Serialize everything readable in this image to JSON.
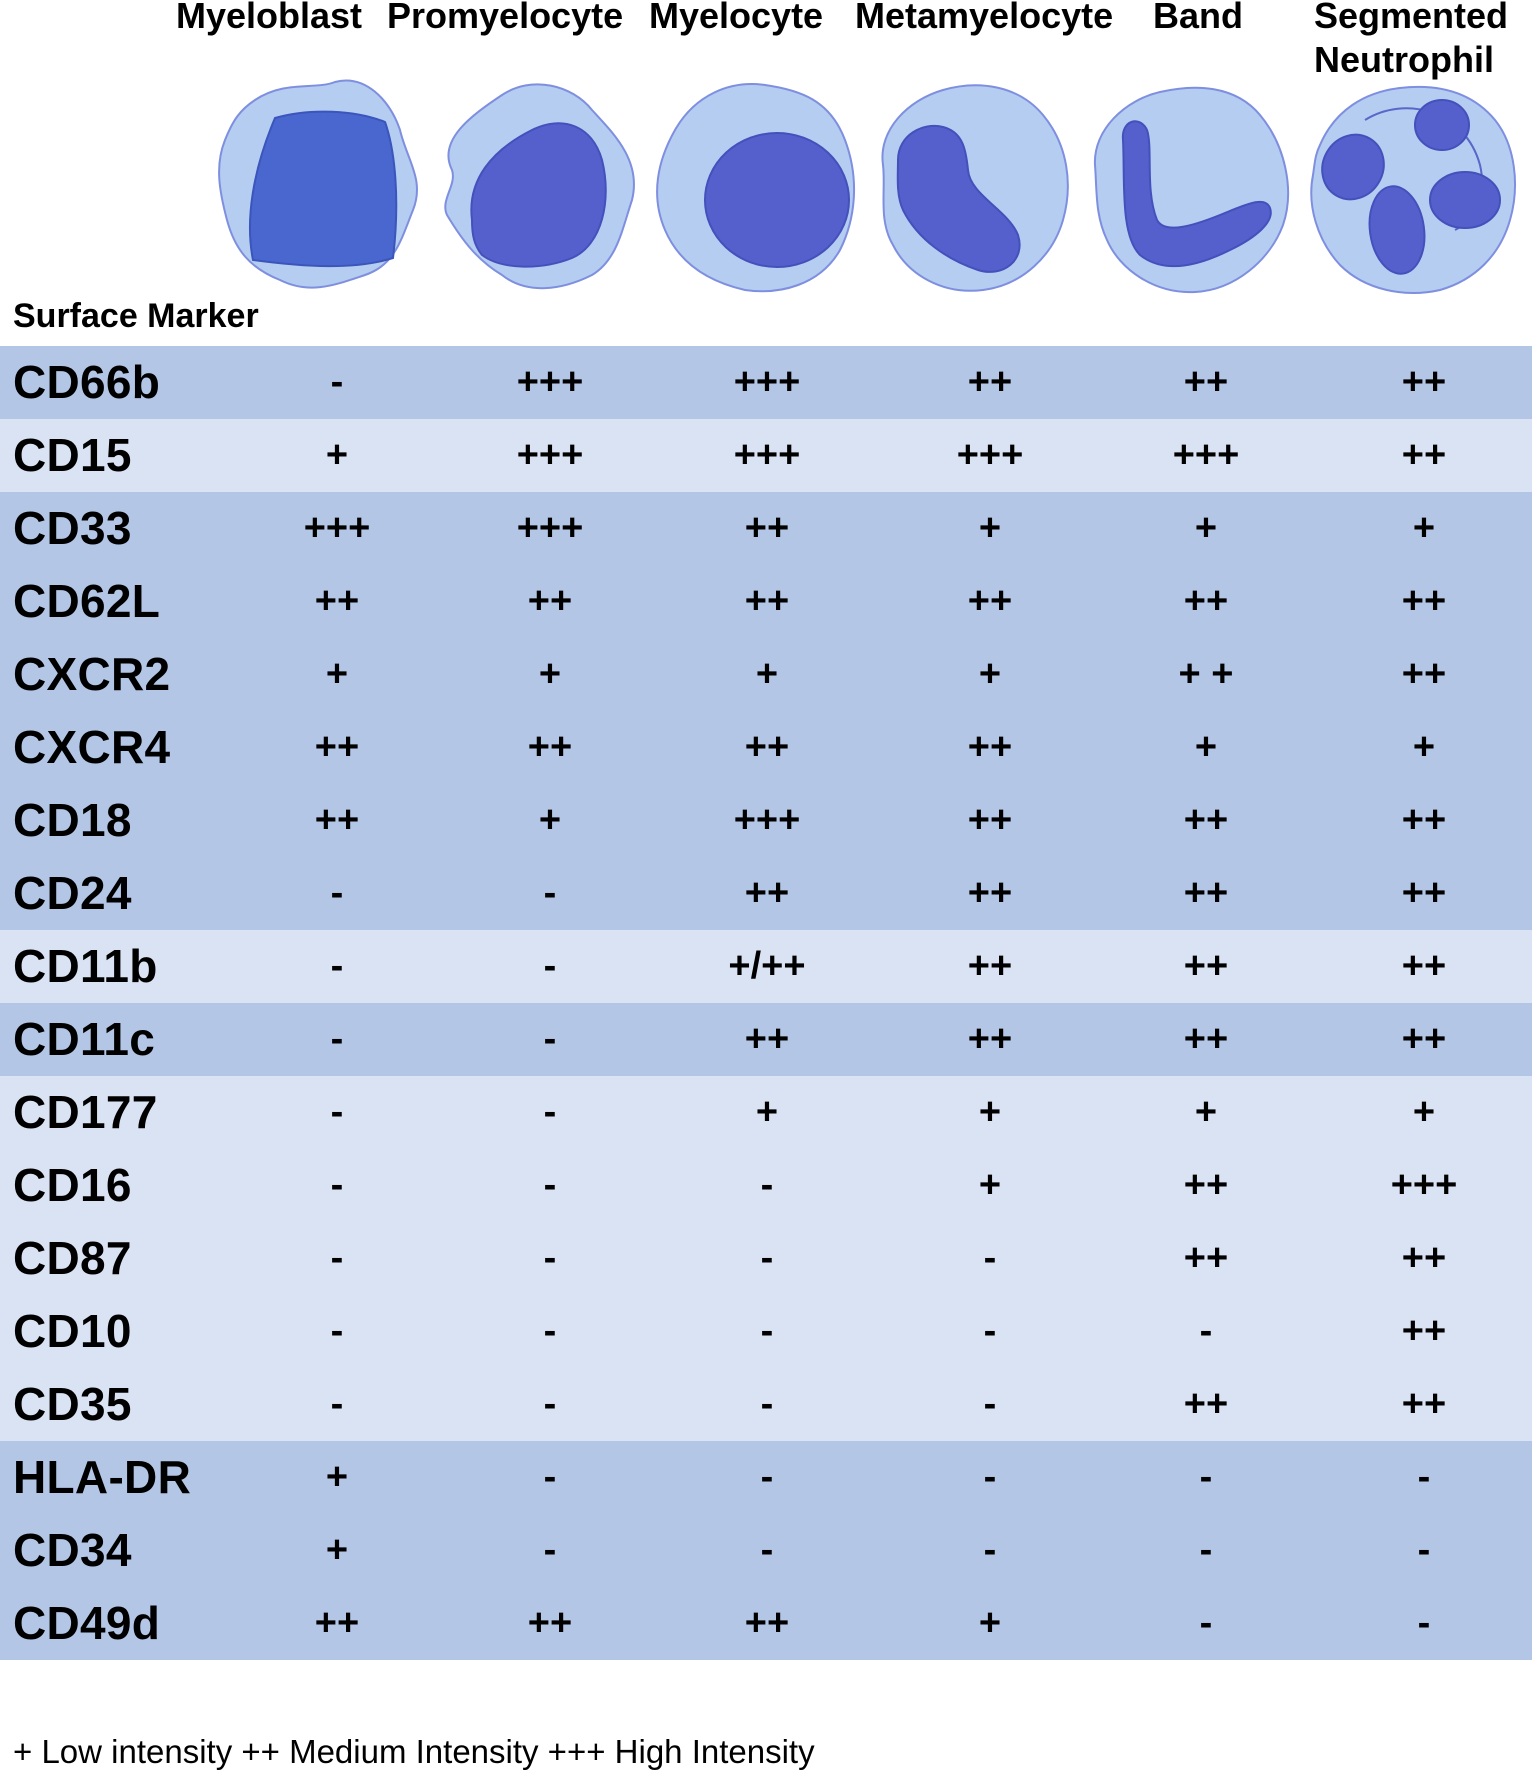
{
  "stages": [
    {
      "name": "Myeloblast"
    },
    {
      "name": "Promyelocyte"
    },
    {
      "name": "Myelocyte"
    },
    {
      "name": "Metamyelocyte"
    },
    {
      "name": "Band"
    },
    {
      "name": "Segmented Neutrophil"
    }
  ],
  "marker_heading": "Surface Marker",
  "rows": [
    {
      "marker": "CD66b",
      "shade": "dark",
      "values": [
        "-",
        "+++",
        "+++",
        "++",
        "++",
        "++"
      ]
    },
    {
      "marker": "CD15",
      "shade": "light",
      "values": [
        "+",
        "+++",
        "+++",
        "+++",
        "+++",
        "++"
      ]
    },
    {
      "marker": "CD33",
      "shade": "dark",
      "values": [
        "+++",
        "+++",
        "++",
        "+",
        "+",
        "+"
      ]
    },
    {
      "marker": "CD62L",
      "shade": "dark",
      "values": [
        "++",
        "++",
        "++",
        "++",
        "++",
        "++"
      ]
    },
    {
      "marker": "CXCR2",
      "shade": "dark",
      "values": [
        "+",
        "+",
        "+",
        "+",
        "+ +",
        "++"
      ]
    },
    {
      "marker": "CXCR4",
      "shade": "dark",
      "values": [
        "++",
        "++",
        "++",
        "++",
        "+",
        "+"
      ]
    },
    {
      "marker": "CD18",
      "shade": "dark",
      "values": [
        "++",
        "+",
        "+++",
        "++",
        "++",
        "++"
      ]
    },
    {
      "marker": "CD24",
      "shade": "dark",
      "values": [
        "-",
        "-",
        "++",
        "++",
        "++",
        "++"
      ]
    },
    {
      "marker": "CD11b",
      "shade": "light",
      "values": [
        "-",
        "-",
        "+/++",
        "++",
        "++",
        "++"
      ]
    },
    {
      "marker": "CD11c",
      "shade": "dark",
      "values": [
        "-",
        "-",
        "++",
        "++",
        "++",
        "++"
      ]
    },
    {
      "marker": "CD177",
      "shade": "light",
      "values": [
        "-",
        "-",
        "+",
        "+",
        "+",
        "+"
      ]
    },
    {
      "marker": "CD16",
      "shade": "light",
      "values": [
        "-",
        "-",
        "-",
        "+",
        "++",
        "+++"
      ]
    },
    {
      "marker": "CD87",
      "shade": "light",
      "values": [
        "-",
        "-",
        "-",
        "-",
        "++",
        "++"
      ]
    },
    {
      "marker": "CD10",
      "shade": "light",
      "values": [
        "-",
        "-",
        "-",
        "-",
        "-",
        "++"
      ]
    },
    {
      "marker": "CD35",
      "shade": "light",
      "values": [
        "-",
        "-",
        "-",
        "-",
        "++",
        "++"
      ]
    },
    {
      "marker": "HLA-DR",
      "shade": "dark",
      "values": [
        "+",
        "-",
        "-",
        "-",
        "-",
        "-"
      ]
    },
    {
      "marker": "CD34",
      "shade": "dark",
      "values": [
        "+",
        "-",
        "-",
        "-",
        "-",
        "-"
      ]
    },
    {
      "marker": "CD49d",
      "shade": "dark",
      "values": [
        "++",
        "++",
        "++",
        "+",
        "-",
        "-"
      ]
    }
  ],
  "legend": "+ Low intensity ++ Medium Intensity +++ High Intensity",
  "colors": {
    "row_dark": "#b3c6e6",
    "row_light": "#dae3f3",
    "cytoplasm": "#b4cdf0",
    "cell_outline": "#7f8fe0",
    "nucleus_blast": "#4a67cf",
    "nucleus": "#5560cc"
  },
  "icons": [
    "myeloblast-cell-icon",
    "promyelocyte-cell-icon",
    "myelocyte-cell-icon",
    "metamyelocyte-cell-icon",
    "band-cell-icon",
    "segmented-neutrophil-cell-icon"
  ]
}
